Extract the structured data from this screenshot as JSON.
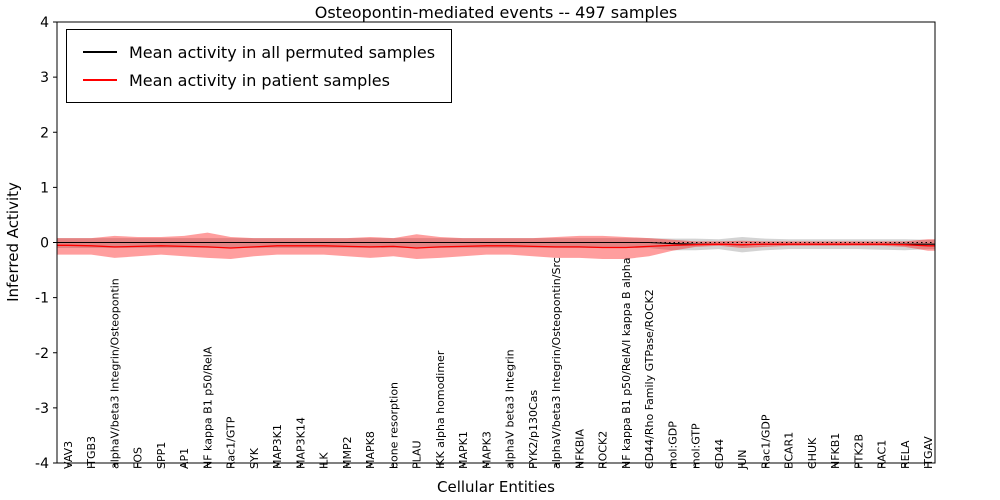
{
  "chart_data": {
    "type": "line",
    "title": "Osteopontin-mediated events -- 497 samples",
    "xlabel": "Cellular Entities",
    "ylabel": "Inferred Activity",
    "ylim": [
      -4,
      4
    ],
    "yticks": [
      4,
      3,
      2,
      1,
      0,
      -1,
      -2,
      -3,
      -4
    ],
    "zero_line": true,
    "grid": false,
    "legend_position": "upper left",
    "categories": [
      "VAV3",
      "ITGB3",
      "alphaV/beta3 Integrin/Osteopontin",
      "FOS",
      "SPP1",
      "AP1",
      "NF kappa B1 p50/RelA",
      "Rac1/GTP",
      "SYK",
      "MAP3K1",
      "MAP3K14",
      "ILK",
      "MMP2",
      "MAPK8",
      "bone resorption",
      "PLAU",
      "IKK alpha homodimer",
      "MAPK1",
      "MAPK3",
      "alphaV beta3 Integrin",
      "PYK2/p130Cas",
      "alphaV/beta3 Integrin/Osteopontin/Src",
      "NFKBIA",
      "ROCK2",
      "NF kappa B1 p50/RelA/I kappa B alpha",
      "CD44/Rho Family GTPase/ROCK2",
      "mol:GDP",
      "mol:GTP",
      "CD44",
      "JUN",
      "Rac1/GDP",
      "BCAR1",
      "CHUK",
      "NFKB1",
      "PTK2B",
      "RAC1",
      "RELA",
      "ITGAV"
    ],
    "series": [
      {
        "name": "Mean activity in all permuted samples",
        "line_color": "#000000",
        "band_color": "rgba(128,128,128,0.35)",
        "values": [
          0,
          0,
          0,
          0,
          0,
          0,
          0,
          0,
          0,
          0,
          0,
          0,
          0,
          0,
          0,
          0,
          0,
          0,
          0,
          0,
          0,
          0,
          0,
          0,
          0,
          0,
          -0.02,
          -0.03,
          -0.03,
          -0.04,
          -0.03,
          -0.03,
          -0.03,
          -0.03,
          -0.03,
          -0.03,
          -0.03,
          -0.03
        ],
        "band_upper": [
          0.08,
          0.08,
          0.08,
          0.08,
          0.08,
          0.08,
          0.08,
          0.08,
          0.08,
          0.08,
          0.08,
          0.08,
          0.08,
          0.08,
          0.08,
          0.08,
          0.08,
          0.08,
          0.08,
          0.08,
          0.08,
          0.08,
          0.08,
          0.08,
          0.08,
          0.08,
          0.07,
          0.07,
          0.06,
          0.1,
          0.07,
          0.06,
          0.06,
          0.06,
          0.06,
          0.06,
          0.06,
          0.05
        ],
        "band_lower": [
          -0.1,
          -0.1,
          -0.1,
          -0.1,
          -0.1,
          -0.1,
          -0.1,
          -0.1,
          -0.1,
          -0.1,
          -0.1,
          -0.1,
          -0.1,
          -0.1,
          -0.1,
          -0.1,
          -0.1,
          -0.1,
          -0.1,
          -0.1,
          -0.1,
          -0.1,
          -0.1,
          -0.1,
          -0.1,
          -0.1,
          -0.14,
          -0.14,
          -0.12,
          -0.18,
          -0.14,
          -0.12,
          -0.12,
          -0.12,
          -0.12,
          -0.13,
          -0.14,
          -0.12
        ]
      },
      {
        "name": "Mean activity in patient samples",
        "line_color": "#ff0000",
        "band_color": "rgba(255,0,0,0.38)",
        "values": [
          -0.05,
          -0.06,
          -0.08,
          -0.07,
          -0.06,
          -0.07,
          -0.08,
          -0.1,
          -0.08,
          -0.06,
          -0.06,
          -0.06,
          -0.07,
          -0.08,
          -0.07,
          -0.1,
          -0.08,
          -0.07,
          -0.06,
          -0.06,
          -0.07,
          -0.08,
          -0.08,
          -0.09,
          -0.09,
          -0.07,
          -0.05,
          -0.04,
          -0.03,
          -0.04,
          -0.03,
          -0.03,
          -0.03,
          -0.03,
          -0.03,
          -0.03,
          -0.04,
          -0.06
        ],
        "band_upper": [
          0.08,
          0.08,
          0.12,
          0.1,
          0.1,
          0.12,
          0.18,
          0.1,
          0.08,
          0.08,
          0.08,
          0.08,
          0.08,
          0.1,
          0.08,
          0.15,
          0.1,
          0.08,
          0.08,
          0.08,
          0.08,
          0.1,
          0.12,
          0.12,
          0.1,
          0.08,
          0.05,
          0.02,
          0.02,
          0.03,
          0.02,
          0.02,
          0.02,
          0.02,
          0.02,
          0.02,
          0.02,
          0.06
        ],
        "band_lower": [
          -0.22,
          -0.22,
          -0.28,
          -0.25,
          -0.22,
          -0.25,
          -0.28,
          -0.3,
          -0.25,
          -0.22,
          -0.22,
          -0.22,
          -0.25,
          -0.28,
          -0.25,
          -0.3,
          -0.28,
          -0.25,
          -0.22,
          -0.22,
          -0.25,
          -0.28,
          -0.28,
          -0.3,
          -0.3,
          -0.25,
          -0.15,
          -0.08,
          -0.06,
          -0.1,
          -0.08,
          -0.06,
          -0.06,
          -0.06,
          -0.06,
          -0.06,
          -0.08,
          -0.15
        ]
      }
    ]
  }
}
